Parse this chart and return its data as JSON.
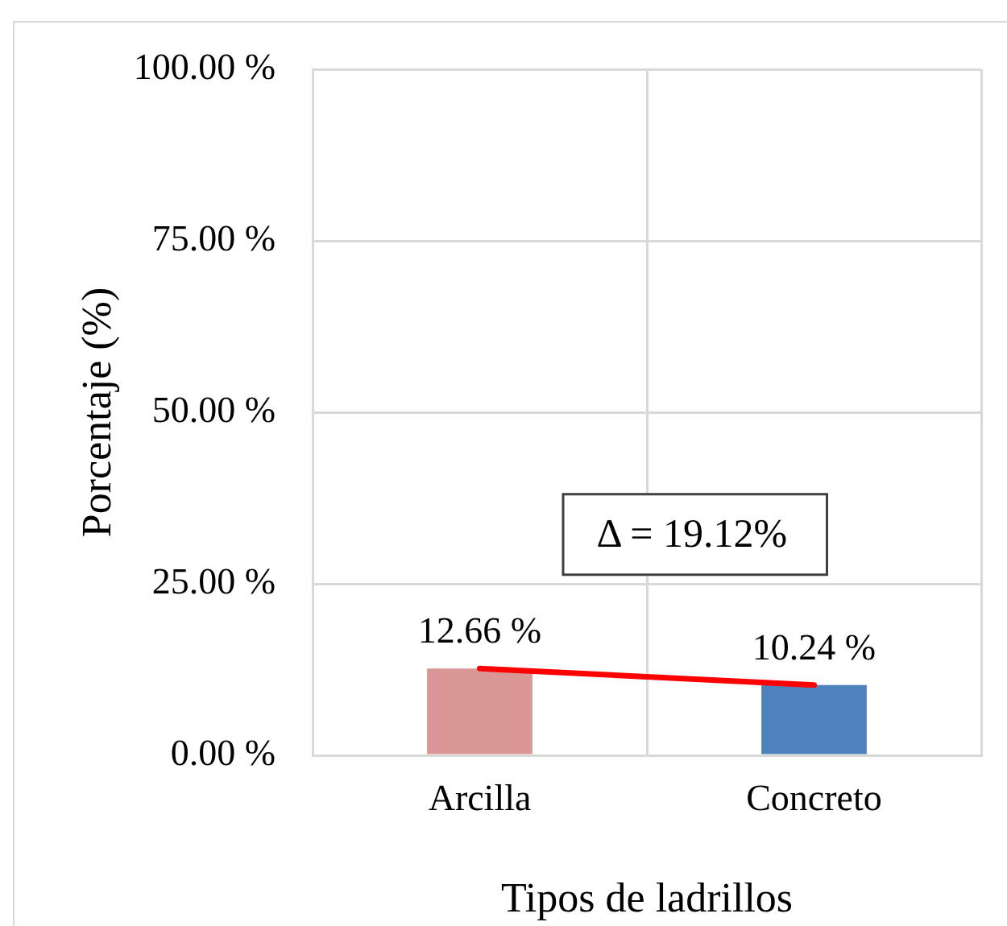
{
  "chart_data": {
    "type": "bar",
    "categories": [
      "Arcilla",
      "Concreto"
    ],
    "series": [
      {
        "colors": [
          "#d99694",
          "#4f81bd"
        ],
        "values": [
          12.66,
          10.24
        ],
        "value_labels": [
          "12.66 %",
          "10.24 %"
        ]
      },
      {
        "type": "line",
        "color": "#ff0000",
        "values": [
          12.66,
          10.24
        ]
      }
    ],
    "xlabel": "Tipos de ladrillos",
    "ylabel": "Porcentaje (%)",
    "ylim": [
      0,
      100
    ],
    "yticks": [
      {
        "value": 0,
        "label": "0.00 %"
      },
      {
        "value": 25,
        "label": "25.00 %"
      },
      {
        "value": 50,
        "label": "50.00 %"
      },
      {
        "value": 75,
        "label": "75.00 %"
      },
      {
        "value": 100,
        "label": "100.00 %"
      }
    ],
    "grid": true,
    "annotations": [
      "Δ = 19.12%"
    ]
  }
}
